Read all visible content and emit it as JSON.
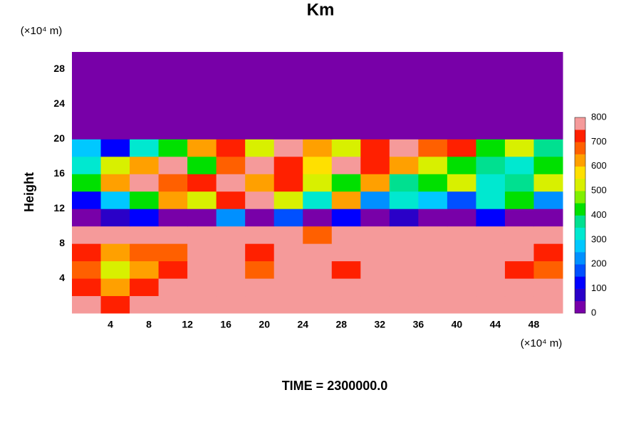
{
  "chart_data": {
    "type": "heatmap",
    "title": "Km",
    "y_label": "Height",
    "y_unit": "(×10⁴ m)",
    "x_unit": "(×10⁴ m)",
    "footer": "TIME = 2300000.0",
    "xlim": [
      0,
      51
    ],
    "ylim": [
      0,
      30
    ],
    "xticks": [
      4,
      8,
      12,
      16,
      20,
      24,
      28,
      32,
      36,
      40,
      44,
      48
    ],
    "yticks": [
      4,
      8,
      12,
      16,
      20,
      24,
      28
    ],
    "x_edges": [
      0,
      3,
      6,
      9,
      12,
      15,
      18,
      21,
      24,
      27,
      30,
      33,
      36,
      39,
      42,
      45,
      48,
      51
    ],
    "y_edges": [
      0,
      2,
      4,
      6,
      8,
      10,
      12,
      14,
      16,
      18,
      20,
      22,
      24,
      26,
      28,
      30
    ],
    "values": [
      [
        800,
        700,
        800,
        800,
        800,
        800,
        800,
        800,
        800,
        800,
        800,
        800,
        800,
        800,
        800,
        800,
        800
      ],
      [
        700,
        600,
        700,
        750,
        800,
        800,
        750,
        800,
        800,
        800,
        800,
        800,
        800,
        800,
        800,
        800,
        750
      ],
      [
        650,
        500,
        600,
        700,
        800,
        750,
        650,
        800,
        800,
        700,
        800,
        800,
        800,
        800,
        800,
        700,
        650
      ],
      [
        700,
        600,
        650,
        650,
        800,
        800,
        700,
        800,
        800,
        800,
        800,
        800,
        800,
        800,
        800,
        800,
        700
      ],
      [
        800,
        800,
        800,
        750,
        800,
        800,
        800,
        750,
        650,
        800,
        800,
        800,
        750,
        800,
        800,
        800,
        800
      ],
      [
        0,
        50,
        100,
        0,
        0,
        200,
        0,
        150,
        0,
        100,
        0,
        50,
        0,
        0,
        100,
        0,
        0
      ],
      [
        100,
        250,
        400,
        600,
        500,
        700,
        800,
        500,
        300,
        600,
        200,
        300,
        250,
        150,
        300,
        400,
        200
      ],
      [
        400,
        600,
        800,
        650,
        700,
        750,
        600,
        700,
        500,
        400,
        600,
        350,
        400,
        500,
        300,
        350,
        500
      ],
      [
        300,
        500,
        600,
        800,
        400,
        650,
        800,
        700,
        550,
        800,
        700,
        600,
        500,
        400,
        350,
        300,
        400
      ],
      [
        250,
        100,
        300,
        400,
        600,
        700,
        500,
        800,
        600,
        500,
        700,
        800,
        650,
        700,
        400,
        500,
        350
      ],
      [
        0,
        0,
        0,
        0,
        0,
        0,
        0,
        0,
        0,
        0,
        0,
        0,
        0,
        0,
        0,
        0,
        0
      ],
      [
        0,
        0,
        0,
        0,
        0,
        0,
        0,
        0,
        0,
        0,
        0,
        0,
        0,
        0,
        0,
        0,
        0
      ],
      [
        0,
        0,
        0,
        0,
        0,
        0,
        0,
        0,
        0,
        0,
        0,
        0,
        0,
        0,
        0,
        0,
        0
      ],
      [
        0,
        0,
        0,
        0,
        0,
        0,
        0,
        0,
        0,
        0,
        0,
        0,
        0,
        0,
        0,
        0,
        0
      ],
      [
        0,
        0,
        0,
        0,
        0,
        0,
        0,
        0,
        0,
        0,
        0,
        0,
        0,
        0,
        0,
        0,
        0
      ]
    ],
    "clim": [
      0,
      800
    ],
    "cticks": [
      0,
      100,
      200,
      300,
      400,
      500,
      600,
      700,
      800
    ],
    "colors": [
      "#7800a8",
      "#2a00c8",
      "#0000ff",
      "#0050ff",
      "#0090ff",
      "#00c8ff",
      "#00e8d0",
      "#00e090",
      "#00e000",
      "#80f000",
      "#d8f000",
      "#ffe000",
      "#ffa000",
      "#ff6000",
      "#ff2000",
      "#f59a9a"
    ]
  }
}
